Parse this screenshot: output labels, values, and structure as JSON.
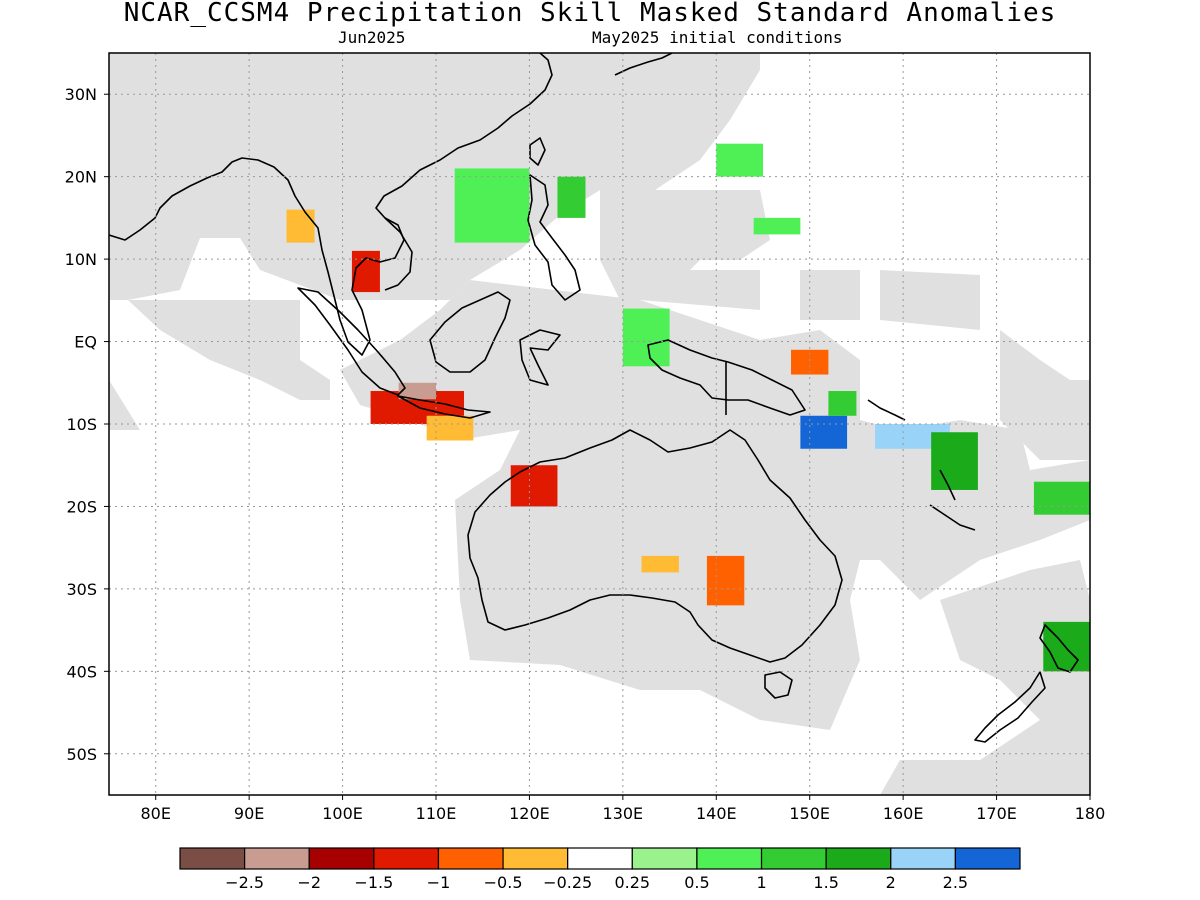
{
  "header": {
    "title": "NCAR_CCSM4 Precipitation Skill Masked Standard Anomalies",
    "month": "Jun2025",
    "init": "May2025 initial conditions"
  },
  "map": {
    "lon_range": [
      75,
      180
    ],
    "lat_range": [
      -55,
      35
    ],
    "lon_ticks": [
      {
        "value": 80,
        "label": "80E"
      },
      {
        "value": 90,
        "label": "90E"
      },
      {
        "value": 100,
        "label": "100E"
      },
      {
        "value": 110,
        "label": "110E"
      },
      {
        "value": 120,
        "label": "120E"
      },
      {
        "value": 130,
        "label": "130E"
      },
      {
        "value": 140,
        "label": "140E"
      },
      {
        "value": 150,
        "label": "150E"
      },
      {
        "value": 160,
        "label": "160E"
      },
      {
        "value": 170,
        "label": "170E"
      },
      {
        "value": 180,
        "label": "180"
      }
    ],
    "lat_ticks": [
      {
        "value": 30,
        "label": "30N"
      },
      {
        "value": 20,
        "label": "20N"
      },
      {
        "value": 10,
        "label": "10N"
      },
      {
        "value": 0,
        "label": "EQ"
      },
      {
        "value": -10,
        "label": "10S"
      },
      {
        "value": -20,
        "label": "20S"
      },
      {
        "value": -30,
        "label": "30S"
      },
      {
        "value": -40,
        "label": "40S"
      },
      {
        "value": -50,
        "label": "50S"
      }
    ],
    "mask_color": "#e0e0e0",
    "coast_color": "#000000"
  },
  "colorbar": {
    "colors": [
      "#7a4e44",
      "#c89c90",
      "#a60000",
      "#e01a00",
      "#ff6000",
      "#ffbb33",
      "#ffffff",
      "#99f28c",
      "#4ef055",
      "#33cc33",
      "#1aaa1a",
      "#99d3f7",
      "#1466d6"
    ],
    "labels": [
      "−2.5",
      "−2",
      "−1.5",
      "−1",
      "−0.5",
      "−0.25",
      "0.25",
      "0.5",
      "1",
      "1.5",
      "2",
      "2.5"
    ]
  },
  "chart_data": {
    "type": "heatmap",
    "variable": "Precipitation Skill Masked Standard Anomalies",
    "model": "NCAR_CCSM4",
    "valid": "Jun2025",
    "initialized": "May2025 initial conditions",
    "regions": [
      {
        "lon": [
          103,
          113
        ],
        "lat": [
          -10,
          -6
        ],
        "value": -1.5
      },
      {
        "lon": [
          106,
          110
        ],
        "lat": [
          -7,
          -5
        ],
        "value": -2.5
      },
      {
        "lon": [
          109,
          114
        ],
        "lat": [
          -12,
          -9
        ],
        "value": -0.5
      },
      {
        "lon": [
          101,
          104
        ],
        "lat": [
          6,
          11
        ],
        "value": -1.5
      },
      {
        "lon": [
          94,
          97
        ],
        "lat": [
          12,
          16
        ],
        "value": -0.5
      },
      {
        "lon": [
          118,
          123
        ],
        "lat": [
          -20,
          -15
        ],
        "value": -1.5
      },
      {
        "lon": [
          139,
          143
        ],
        "lat": [
          -32,
          -26
        ],
        "value": -1
      },
      {
        "lon": [
          132,
          136
        ],
        "lat": [
          -28,
          -26
        ],
        "value": -0.5
      },
      {
        "lon": [
          149,
          154
        ],
        "lat": [
          -13,
          -9
        ],
        "value": 2.5
      },
      {
        "lon": [
          157,
          165
        ],
        "lat": [
          -13,
          -10
        ],
        "value": 2
      },
      {
        "lon": [
          163,
          168
        ],
        "lat": [
          -18,
          -11
        ],
        "value": 1.5
      },
      {
        "lon": [
          175,
          180
        ],
        "lat": [
          -40,
          -34
        ],
        "value": 1.5
      },
      {
        "lon": [
          174,
          180
        ],
        "lat": [
          -21,
          -17
        ],
        "value": 1
      },
      {
        "lon": [
          123,
          126
        ],
        "lat": [
          15,
          20
        ],
        "value": 1
      },
      {
        "lon": [
          112,
          120
        ],
        "lat": [
          12,
          21
        ],
        "value": 0.5
      },
      {
        "lon": [
          140,
          145
        ],
        "lat": [
          20,
          24
        ],
        "value": 0.5
      },
      {
        "lon": [
          144,
          149
        ],
        "lat": [
          13,
          15
        ],
        "value": 0.5
      },
      {
        "lon": [
          130,
          135
        ],
        "lat": [
          -3,
          4
        ],
        "value": 0.5
      },
      {
        "lon": [
          148,
          152
        ],
        "lat": [
          -4,
          -1
        ],
        "value": -1
      },
      {
        "lon": [
          152,
          155
        ],
        "lat": [
          -9,
          -6
        ],
        "value": 1
      }
    ]
  }
}
